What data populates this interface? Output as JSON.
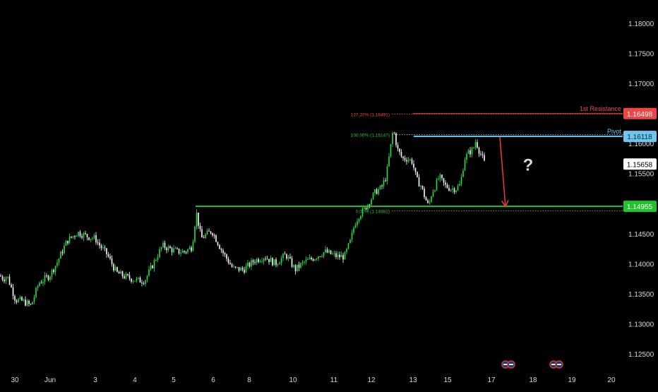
{
  "colors": {
    "background": "#000000",
    "up": "#26e04a",
    "down": "#ffffff",
    "resistance": "#f04545",
    "pivot": "#6cc6ef",
    "support": "#22c42e",
    "axis_text": "#d9d9d9",
    "current": "#ffffff",
    "arrow": "#ef3b3b",
    "question": "#d9d9d9",
    "event_icon": "#d23c3c"
  },
  "chart_data": {
    "type": "candlestick",
    "title": "",
    "xlabel": "",
    "ylabel": "",
    "ylim": [
      1.1218,
      1.1835
    ],
    "y_ticks": [
      "1.18000",
      "1.17500",
      "1.17000",
      "1.16500",
      "1.16000",
      "1.15500",
      "1.15000",
      "1.14500",
      "1.14000",
      "1.13500",
      "1.13000",
      "1.12500"
    ],
    "x_ticks": [
      "30",
      "Jun",
      "3",
      "4",
      "5",
      "6",
      "8",
      "10",
      "11",
      "12",
      "13",
      "15",
      "17",
      "18",
      "19",
      "20"
    ],
    "close_anchors": [
      [
        0,
        1.138
      ],
      [
        5,
        1.1375
      ],
      [
        10,
        1.138
      ],
      [
        22,
        1.134
      ],
      [
        32,
        1.1338
      ],
      [
        44,
        1.133
      ],
      [
        55,
        1.1368
      ],
      [
        70,
        1.138
      ],
      [
        80,
        1.14
      ],
      [
        95,
        1.1438
      ],
      [
        110,
        1.1452
      ],
      [
        125,
        1.1445
      ],
      [
        135,
        1.1442
      ],
      [
        140,
        1.1432
      ],
      [
        152,
        1.1415
      ],
      [
        165,
        1.1385
      ],
      [
        178,
        1.1378
      ],
      [
        195,
        1.1372
      ],
      [
        205,
        1.1372
      ],
      [
        218,
        1.1402
      ],
      [
        230,
        1.143
      ],
      [
        240,
        1.1425
      ],
      [
        252,
        1.142
      ],
      [
        262,
        1.142
      ],
      [
        272,
        1.1428
      ],
      [
        278,
        1.1486
      ],
      [
        285,
        1.1442
      ],
      [
        300,
        1.1455
      ],
      [
        315,
        1.142
      ],
      [
        330,
        1.1392
      ],
      [
        345,
        1.139
      ],
      [
        360,
        1.1405
      ],
      [
        375,
        1.1412
      ],
      [
        390,
        1.14
      ],
      [
        405,
        1.1415
      ],
      [
        418,
        1.139
      ],
      [
        430,
        1.1402
      ],
      [
        445,
        1.141
      ],
      [
        460,
        1.142
      ],
      [
        478,
        1.1412
      ],
      [
        488,
        1.1412
      ],
      [
        497,
        1.144
      ],
      [
        502,
        1.1465
      ],
      [
        508,
        1.148
      ],
      [
        516,
        1.149
      ],
      [
        524,
        1.1505
      ],
      [
        532,
        1.152
      ],
      [
        540,
        1.1526
      ],
      [
        547,
        1.1545
      ],
      [
        553,
        1.1592
      ],
      [
        557,
        1.1625
      ],
      [
        563,
        1.159
      ],
      [
        570,
        1.1575
      ],
      [
        577,
        1.1575
      ],
      [
        584,
        1.157
      ],
      [
        590,
        1.154
      ],
      [
        596,
        1.153
      ],
      [
        602,
        1.151
      ],
      [
        607,
        1.1495
      ],
      [
        612,
        1.152
      ],
      [
        617,
        1.153
      ],
      [
        622,
        1.1545
      ],
      [
        630,
        1.153
      ],
      [
        638,
        1.1525
      ],
      [
        646,
        1.1525
      ],
      [
        652,
        1.1532
      ],
      [
        658,
        1.1575
      ],
      [
        664,
        1.1585
      ],
      [
        670,
        1.159
      ],
      [
        674,
        1.1605
      ],
      [
        678,
        1.159
      ],
      [
        682,
        1.158
      ],
      [
        686,
        1.1568
      ]
    ],
    "support_line": {
      "value": 1.14955,
      "price_label": "1.14955",
      "x_start": 277
    },
    "pivot_line": {
      "value": 1.16118,
      "price_label": "1.16118",
      "title": "Pivot",
      "x_start": 586
    },
    "resistance_line": {
      "value": 1.16498,
      "price_label": "1.16498",
      "title": "1st Resistance"
    },
    "current_price": {
      "value": 1.15658,
      "price_label": "1.15658"
    },
    "fibonacci": [
      {
        "label": "127.20% (1.16491)",
        "value": 1.16491
      },
      {
        "label": "100.00% (1.16147)",
        "value": 1.16147
      },
      {
        "label": "0.00% (1.14882)",
        "value": 1.14882
      }
    ],
    "fib_x": [
      555,
      885
    ],
    "annotation_arrow": {
      "from": [
        708,
        1.1611
      ],
      "to": [
        716,
        1.1495
      ]
    },
    "question_mark": {
      "text": "?",
      "x": 748,
      "y": 1.1555
    },
    "event_icons": [
      {
        "name": "event-icon-1",
        "x": 716,
        "count": 2
      },
      {
        "name": "event-icon-2",
        "x": 784,
        "count": 2
      }
    ]
  }
}
